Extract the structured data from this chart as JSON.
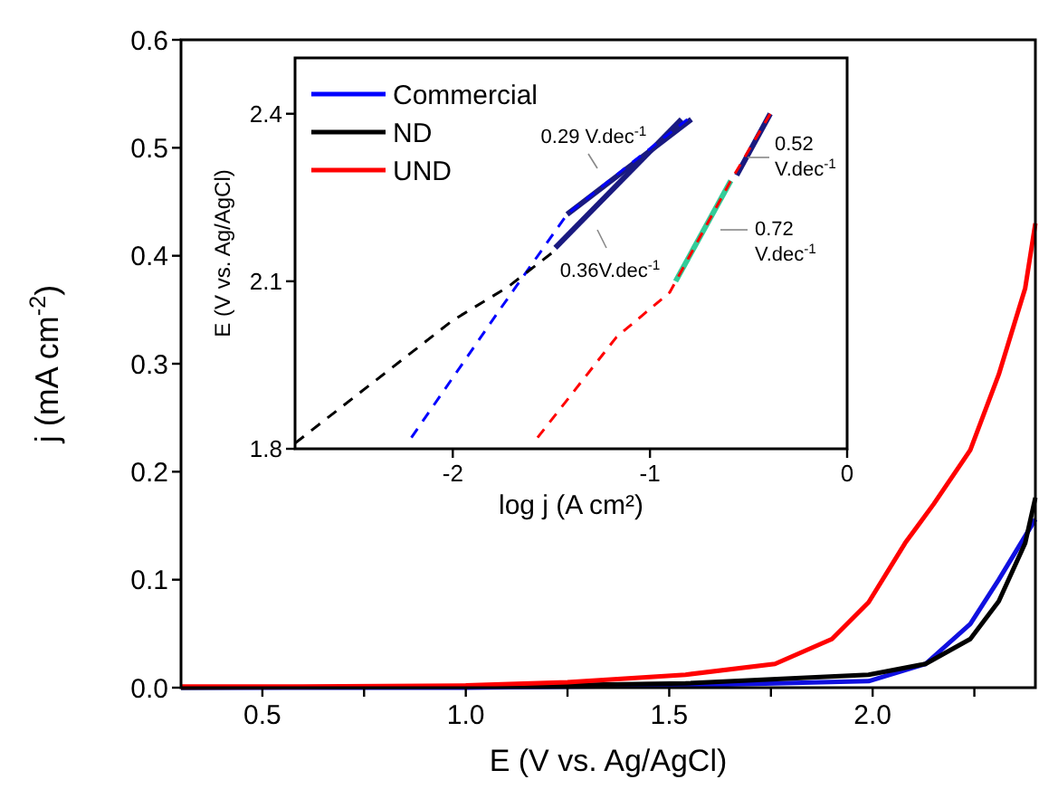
{
  "chart_data": [
    {
      "type": "line",
      "xlabel": "E (V vs. Ag/AgCl)",
      "ylabel": "j (mA cm$^{-2}$)",
      "xlim": [
        0.3,
        2.4
      ],
      "ylim": [
        0,
        0.6
      ],
      "xticks": [
        {
          "value": 0.5,
          "label": "0.5"
        },
        {
          "value": 0.75,
          "label": null
        },
        {
          "value": 1,
          "label": "1.0"
        },
        {
          "value": 1.25,
          "label": null
        },
        {
          "value": 1.5,
          "label": "1.5"
        },
        {
          "value": 1.75,
          "label": null
        },
        {
          "value": 2,
          "label": "2.0"
        },
        {
          "value": 2.25,
          "label": null
        }
      ],
      "yticks": [
        {
          "value": 0,
          "label": "0.0"
        },
        {
          "value": 0.1,
          "label": "0.1"
        },
        {
          "value": 0.2,
          "label": "0.2"
        },
        {
          "value": 0.3,
          "label": "0.3"
        },
        {
          "value": 0.4,
          "label": "0.4"
        },
        {
          "value": 0.5,
          "label": "0.5"
        },
        {
          "value": 0.6,
          "label": "0.6"
        }
      ],
      "series": [
        {
          "color": "#1010e0",
          "x": [
            0.3,
            1.0,
            1.54,
            1.99,
            2.13,
            2.24,
            2.31,
            2.4
          ],
          "values": [
            0,
            0,
            0.002,
            0.006,
            0.022,
            0.059,
            0.1,
            0.156
          ]
        },
        {
          "color": "#000000",
          "x": [
            0.3,
            1.0,
            1.54,
            1.99,
            2.13,
            2.24,
            2.31,
            2.375,
            2.4
          ],
          "values": [
            0,
            0.001,
            0.004,
            0.012,
            0.022,
            0.045,
            0.08,
            0.134,
            0.176
          ]
        },
        {
          "color": "#ff0000",
          "x": [
            0.3,
            0.6,
            1.0,
            1.25,
            1.54,
            1.76,
            1.9,
            1.99,
            2.08,
            2.15,
            2.24,
            2.31,
            2.375,
            2.4
          ],
          "values": [
            0.001,
            0.001,
            0.002,
            0.005,
            0.012,
            0.022,
            0.045,
            0.079,
            0.134,
            0.17,
            0.22,
            0.29,
            0.37,
            0.43
          ]
        }
      ]
    },
    {
      "type": "line",
      "xlabel": "log j (A cm²)",
      "ylabel": "E (V vs. Ag/AgCl)",
      "xlim": [
        -2.8,
        0
      ],
      "ylim": [
        1.8,
        2.5
      ],
      "xticks": [
        -2,
        -1,
        0
      ],
      "yticks": [
        1.8,
        2.1,
        2.4
      ],
      "legend": "top left",
      "series": [
        {
          "name": "Commercial",
          "color": "#0000ff",
          "line_style": "dashed",
          "x": [
            -2.21,
            -1.76,
            -1.42,
            -1.1,
            -0.81
          ],
          "values": [
            1.82,
            2.05,
            2.22,
            2.31,
            2.39
          ]
        },
        {
          "name": "ND",
          "color": "#000000",
          "line_style": "dashed",
          "x": [
            -2.8,
            -2.0,
            -1.72,
            -1.5
          ],
          "values": [
            1.81,
            2.03,
            2.09,
            2.15
          ]
        },
        {
          "name": "UND",
          "color": "#ff0000",
          "line_style": "dashed",
          "x": [
            -1.57,
            -1.17,
            -0.9,
            -0.59,
            -0.39
          ],
          "values": [
            1.82,
            2.0,
            2.08,
            2.28,
            2.4
          ]
        },
        {
          "color": "#1a1a80",
          "line_style": "solid",
          "x": [
            -1.42,
            -0.79
          ],
          "values": [
            2.22,
            2.39
          ]
        },
        {
          "color": "#1a1a80",
          "line_style": "solid",
          "x": [
            -1.48,
            -0.84
          ],
          "values": [
            2.16,
            2.39
          ]
        },
        {
          "color": "#1a1a80",
          "line_style": "solid",
          "x": [
            -0.56,
            -0.39
          ],
          "values": [
            2.29,
            2.4
          ]
        },
        {
          "color": "#33cc99",
          "line_style": "solid",
          "x": [
            -0.87,
            -0.59
          ],
          "values": [
            2.1,
            2.28
          ]
        }
      ],
      "annotations": [
        "0.29 V.dec$^{-1}$",
        "0.36V.dec$^{-1}$",
        "0.52 V.dec$^{-1}$",
        "0.72 V.dec$^{-1}$"
      ]
    }
  ]
}
